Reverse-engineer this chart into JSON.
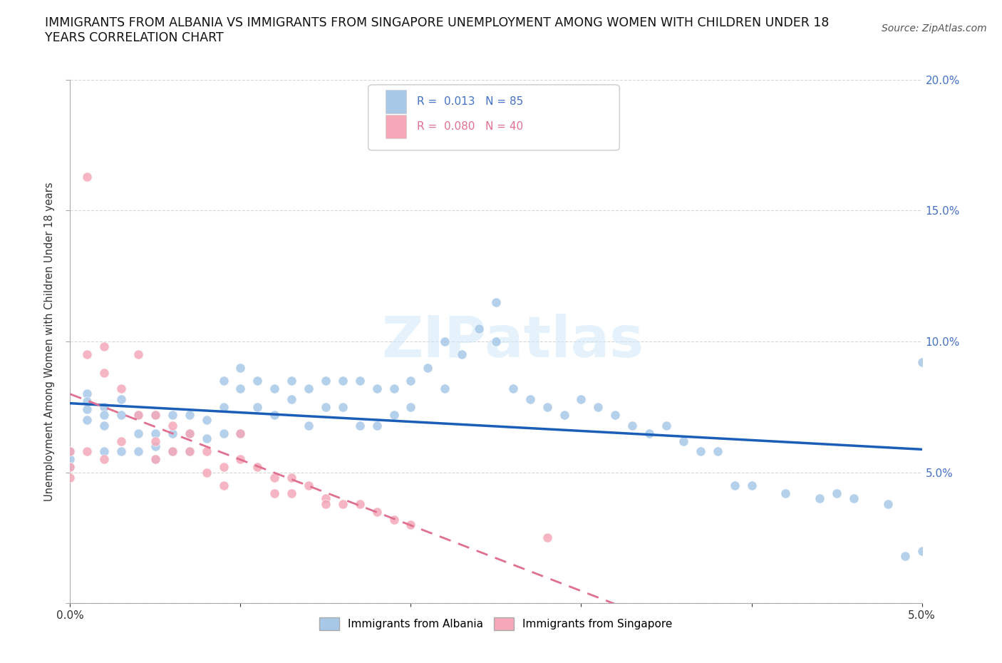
{
  "title_line1": "IMMIGRANTS FROM ALBANIA VS IMMIGRANTS FROM SINGAPORE UNEMPLOYMENT AMONG WOMEN WITH CHILDREN UNDER 18",
  "title_line2": "YEARS CORRELATION CHART",
  "source": "Source: ZipAtlas.com",
  "ylabel": "Unemployment Among Women with Children Under 18 years",
  "xlim": [
    0,
    0.05
  ],
  "ylim": [
    0,
    0.2
  ],
  "legend_albania": "Immigrants from Albania",
  "legend_singapore": "Immigrants from Singapore",
  "R_albania": 0.013,
  "N_albania": 85,
  "R_singapore": 0.08,
  "N_singapore": 40,
  "color_albania": "#a8c8e8",
  "color_singapore": "#f4a8b8",
  "trendline_albania": "#1a5eb8",
  "trendline_singapore": "#e07090",
  "background_color": "#ffffff",
  "watermark": "ZIPatlas",
  "grid_color": "#cccccc",
  "right_axis_color": "#4472c4"
}
